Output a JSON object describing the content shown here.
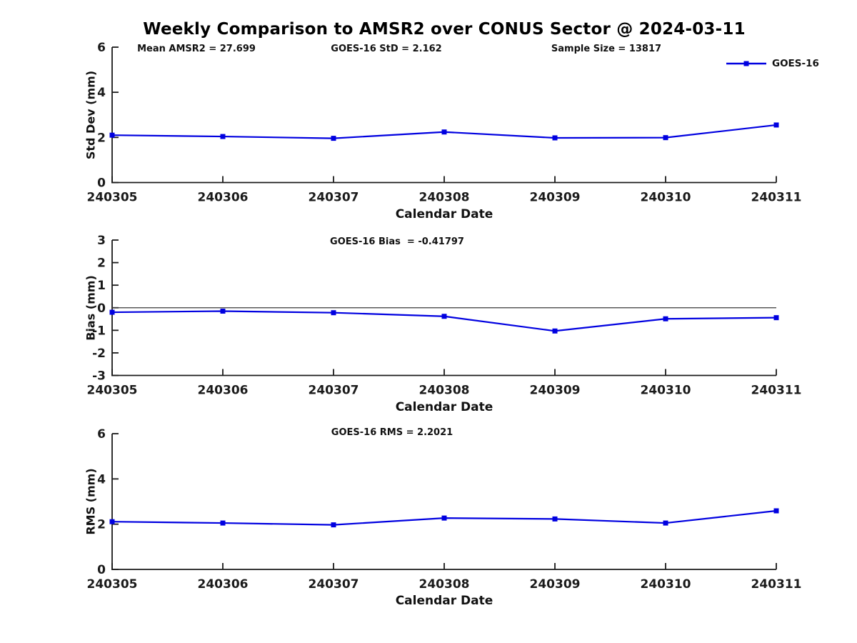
{
  "title": "Weekly Comparison to AMSR2 over CONUS Sector @ 2024-03-11",
  "legend": {
    "label": "GOES-16",
    "color": "#0000e0"
  },
  "stats": {
    "mean_amsr2": "Mean AMSR2 = 27.699",
    "goes16_std": "GOES-16 StD = 2.162",
    "sample_size": "Sample Size = 13817",
    "goes16_bias": "GOES-16 Bias  = -0.41797",
    "goes16_rms": "GOES-16 RMS = 2.2021"
  },
  "chart_data": [
    {
      "type": "line",
      "panel": "std_dev",
      "categories": [
        "240305",
        "240306",
        "240307",
        "240308",
        "240309",
        "240310",
        "240311"
      ],
      "series": [
        {
          "name": "GOES-16",
          "values": [
            2.1,
            2.04,
            1.96,
            2.24,
            1.98,
            1.99,
            2.55
          ]
        }
      ],
      "xlabel": "Calendar Date",
      "ylabel": "Std Dev (mm)",
      "ylim": [
        0,
        6
      ],
      "yticks": [
        0,
        2,
        4,
        6
      ],
      "grid": false,
      "legend_position": "top-right-outside",
      "annotations": [
        "Mean AMSR2 = 27.699",
        "GOES-16 StD = 2.162",
        "Sample Size = 13817"
      ]
    },
    {
      "type": "line",
      "panel": "bias",
      "categories": [
        "240305",
        "240306",
        "240307",
        "240308",
        "240309",
        "240310",
        "240311"
      ],
      "series": [
        {
          "name": "GOES-16",
          "values": [
            -0.2,
            -0.15,
            -0.22,
            -0.38,
            -1.03,
            -0.49,
            -0.44
          ]
        }
      ],
      "xlabel": "Calendar Date",
      "ylabel": "Bias (mm)",
      "ylim": [
        -3,
        3
      ],
      "yticks": [
        -3,
        -2,
        -1,
        0,
        1,
        2,
        3
      ],
      "grid": false,
      "zero_line": true,
      "annotations": [
        "GOES-16 Bias  = -0.41797"
      ]
    },
    {
      "type": "line",
      "panel": "rms",
      "categories": [
        "240305",
        "240306",
        "240307",
        "240308",
        "240309",
        "240310",
        "240311"
      ],
      "series": [
        {
          "name": "GOES-16",
          "values": [
            2.11,
            2.05,
            1.97,
            2.27,
            2.23,
            2.05,
            2.59
          ]
        }
      ],
      "xlabel": "Calendar Date",
      "ylabel": "RMS (mm)",
      "ylim": [
        0,
        6
      ],
      "yticks": [
        0,
        2,
        4,
        6
      ],
      "grid": false,
      "annotations": [
        "GOES-16 RMS = 2.2021"
      ]
    }
  ]
}
